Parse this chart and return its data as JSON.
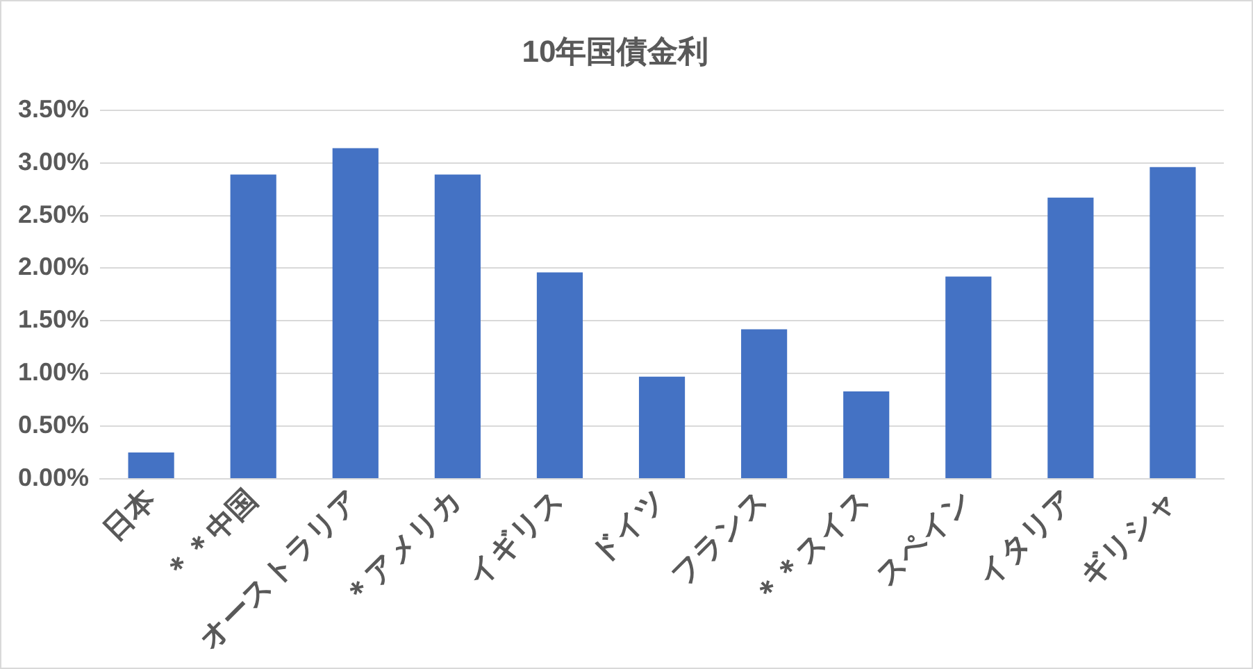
{
  "chart_data": {
    "type": "bar",
    "title": "10年国債金利",
    "categories": [
      "日本",
      "＊＊中国",
      "オーストラリア",
      "＊アメリカ",
      "イギリス",
      "ドイツ",
      "フランス",
      "＊＊スイス",
      "スペイン",
      "イタリア",
      "ギリシャ"
    ],
    "values": [
      0.25,
      2.89,
      3.14,
      2.89,
      1.96,
      0.97,
      1.42,
      0.83,
      1.92,
      2.67,
      2.96
    ],
    "color": "#4472c4",
    "ylim": [
      0,
      3.5
    ],
    "yticks": [
      {
        "value": 0,
        "label": "0.00%"
      },
      {
        "value": 0.5,
        "label": "0.50%"
      },
      {
        "value": 1,
        "label": "1.00%"
      },
      {
        "value": 1.5,
        "label": "1.50%"
      },
      {
        "value": 2,
        "label": "2.00%"
      },
      {
        "value": 2.5,
        "label": "2.50%"
      },
      {
        "value": 3,
        "label": "3.00%"
      },
      {
        "value": 3.5,
        "label": "3.50%"
      }
    ],
    "grid": "y",
    "legend": false
  }
}
